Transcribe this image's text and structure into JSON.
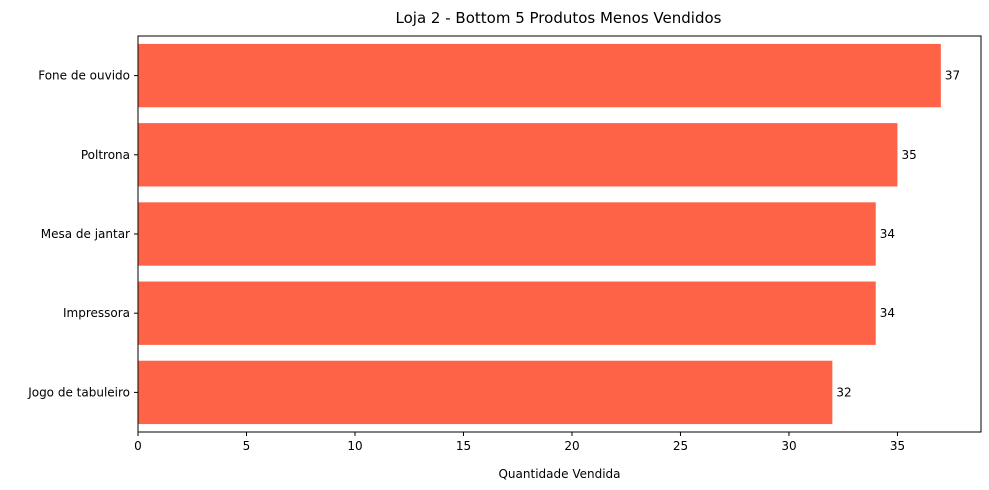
{
  "chart_data": {
    "type": "bar",
    "orientation": "horizontal",
    "title": "Loja 2 - Bottom 5 Produtos Menos Vendidos",
    "xlabel": "Quantidade Vendida",
    "ylabel": "",
    "categories": [
      "Fone de ouvido",
      "Poltrona",
      "Mesa de jantar",
      "Impressora",
      "Jogo de tabuleiro"
    ],
    "values": [
      37,
      35,
      34,
      34,
      32
    ],
    "xlim": [
      0,
      38.85
    ],
    "xticks": [
      0,
      5,
      10,
      15,
      20,
      25,
      30,
      35
    ],
    "bar_color": "#ff6347",
    "grid": false,
    "legend": "none"
  }
}
